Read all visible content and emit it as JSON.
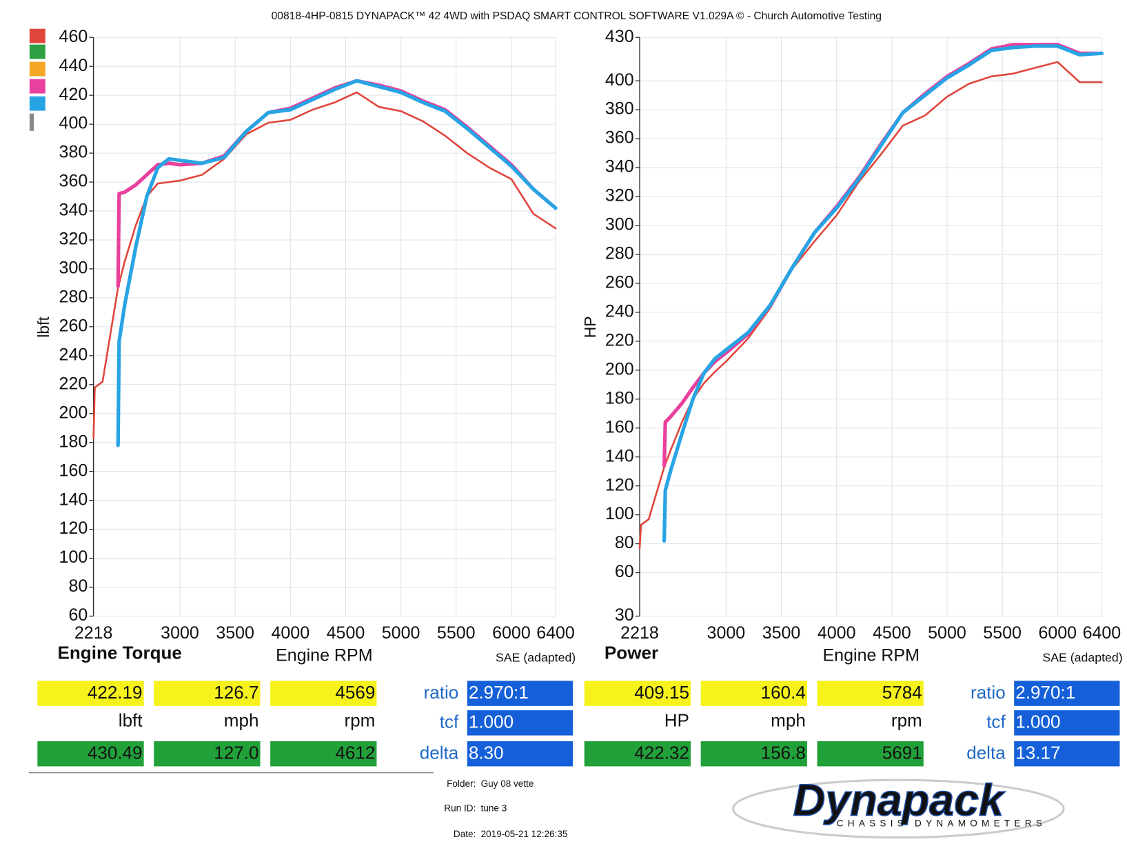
{
  "header": {
    "title": "00818-4HP-0815 DYNAPACK™ 42 4WD with PSDAQ SMART CONTROL SOFTWARE V1.029A © - Church Automotive Testing"
  },
  "chart_data": [
    {
      "type": "line",
      "title": "Engine Torque",
      "x_label": "Engine RPM",
      "y_label": "lbft",
      "note": "SAE (adapted)",
      "grid": true,
      "x": [
        2218,
        2230,
        2300,
        2440,
        2450,
        2500,
        2600,
        2700,
        2800,
        2900,
        3000,
        3200,
        3400,
        3600,
        3800,
        4000,
        4200,
        4400,
        4600,
        4800,
        5000,
        5200,
        5400,
        5600,
        5800,
        6000,
        6200,
        6400
      ],
      "xlim": [
        2218,
        6400
      ],
      "xticks": [
        2218,
        3000,
        3500,
        4000,
        4500,
        5000,
        5500,
        6000,
        6400
      ],
      "ylim": [
        60,
        460
      ],
      "yticks": [
        60,
        80,
        100,
        120,
        140,
        160,
        180,
        200,
        220,
        240,
        260,
        280,
        300,
        320,
        340,
        360,
        380,
        400,
        420,
        440,
        460
      ],
      "series": [
        {
          "color": "#e0463c",
          "values": [
            183,
            218,
            222,
            287,
            290,
            305,
            330,
            350,
            359,
            360,
            361,
            365,
            376,
            393,
            401,
            403,
            410,
            415,
            422,
            412,
            409,
            402,
            392,
            380,
            370,
            362,
            338,
            328
          ]
        },
        {
          "color": "#e8409c",
          "values": [
            null,
            null,
            null,
            288,
            352,
            353,
            358,
            365,
            372,
            373,
            372,
            373,
            378,
            395,
            408,
            411,
            418,
            425,
            430,
            427,
            423,
            416,
            410,
            398,
            385,
            372,
            355,
            342
          ]
        },
        {
          "color": "#27a4e4",
          "values": [
            null,
            null,
            null,
            178,
            250,
            275,
            315,
            350,
            370,
            376,
            375,
            373,
            377,
            395,
            408,
            410,
            417,
            424,
            430,
            426,
            422,
            415,
            409,
            397,
            384,
            371,
            355,
            342
          ]
        }
      ]
    },
    {
      "type": "line",
      "title": "Power",
      "x_label": "Engine RPM",
      "y_label": "HP",
      "note": "SAE (adapted)",
      "grid": true,
      "x": [
        2218,
        2230,
        2300,
        2440,
        2450,
        2500,
        2600,
        2700,
        2800,
        2900,
        3000,
        3200,
        3400,
        3600,
        3800,
        4000,
        4200,
        4400,
        4600,
        4800,
        5000,
        5200,
        5400,
        5600,
        5800,
        6000,
        6200,
        6400
      ],
      "xlim": [
        2218,
        6400
      ],
      "xticks": [
        2218,
        3000,
        3500,
        4000,
        4500,
        5000,
        5500,
        6000,
        6400
      ],
      "ylim": [
        30,
        430
      ],
      "yticks": [
        30,
        60,
        80,
        100,
        120,
        140,
        160,
        180,
        200,
        220,
        240,
        260,
        280,
        300,
        320,
        340,
        360,
        380,
        400,
        430
      ],
      "series": [
        {
          "color": "#e0463c",
          "values": [
            77,
            93,
            97,
            133,
            135,
            145,
            164,
            180,
            191,
            199,
            206,
            222,
            243,
            270,
            289,
            307,
            330,
            349,
            369,
            376,
            389,
            398,
            403,
            405,
            409,
            413,
            399,
            399
          ]
        },
        {
          "color": "#e8409c",
          "values": [
            null,
            null,
            null,
            134,
            164,
            168,
            177,
            188,
            198,
            206,
            212,
            225,
            245,
            271,
            295,
            313,
            333,
            356,
            378,
            391,
            403,
            412,
            422,
            425,
            425,
            425,
            419,
            419
          ]
        },
        {
          "color": "#27a4e4",
          "values": [
            null,
            null,
            null,
            82,
            117,
            131,
            156,
            180,
            198,
            208,
            214,
            226,
            245,
            271,
            295,
            312,
            332,
            355,
            378,
            390,
            402,
            411,
            421,
            423,
            424,
            424,
            418,
            419
          ]
        }
      ]
    }
  ],
  "readouts": [
    {
      "current": [
        "422.19",
        "126.7",
        "4569"
      ],
      "units": [
        "lbft",
        "mph",
        "rpm"
      ],
      "peak": [
        "430.49",
        "127.0",
        "4612"
      ],
      "factors": [
        {
          "label": "ratio",
          "value": "2.970:1"
        },
        {
          "label": "tcf",
          "value": "1.000"
        },
        {
          "label": "delta",
          "value": "8.30"
        }
      ]
    },
    {
      "current": [
        "409.15",
        "160.4",
        "5784"
      ],
      "units": [
        "HP",
        "mph",
        "rpm"
      ],
      "peak": [
        "422.32",
        "156.8",
        "5691"
      ],
      "factors": [
        {
          "label": "ratio",
          "value": "2.970:1"
        },
        {
          "label": "tcf",
          "value": "1.000"
        },
        {
          "label": "delta",
          "value": "13.17"
        }
      ]
    }
  ],
  "footer": {
    "folder_label": "Folder:",
    "folder": "Guy 08 vette",
    "run_label": "Run ID:",
    "run": "tune 3",
    "date_label": "Date:",
    "date": "2019-05-21 12:26:35"
  },
  "logo": {
    "name": "Dynapack",
    "tagline": "CHASSIS DYNAMOMETERS"
  }
}
